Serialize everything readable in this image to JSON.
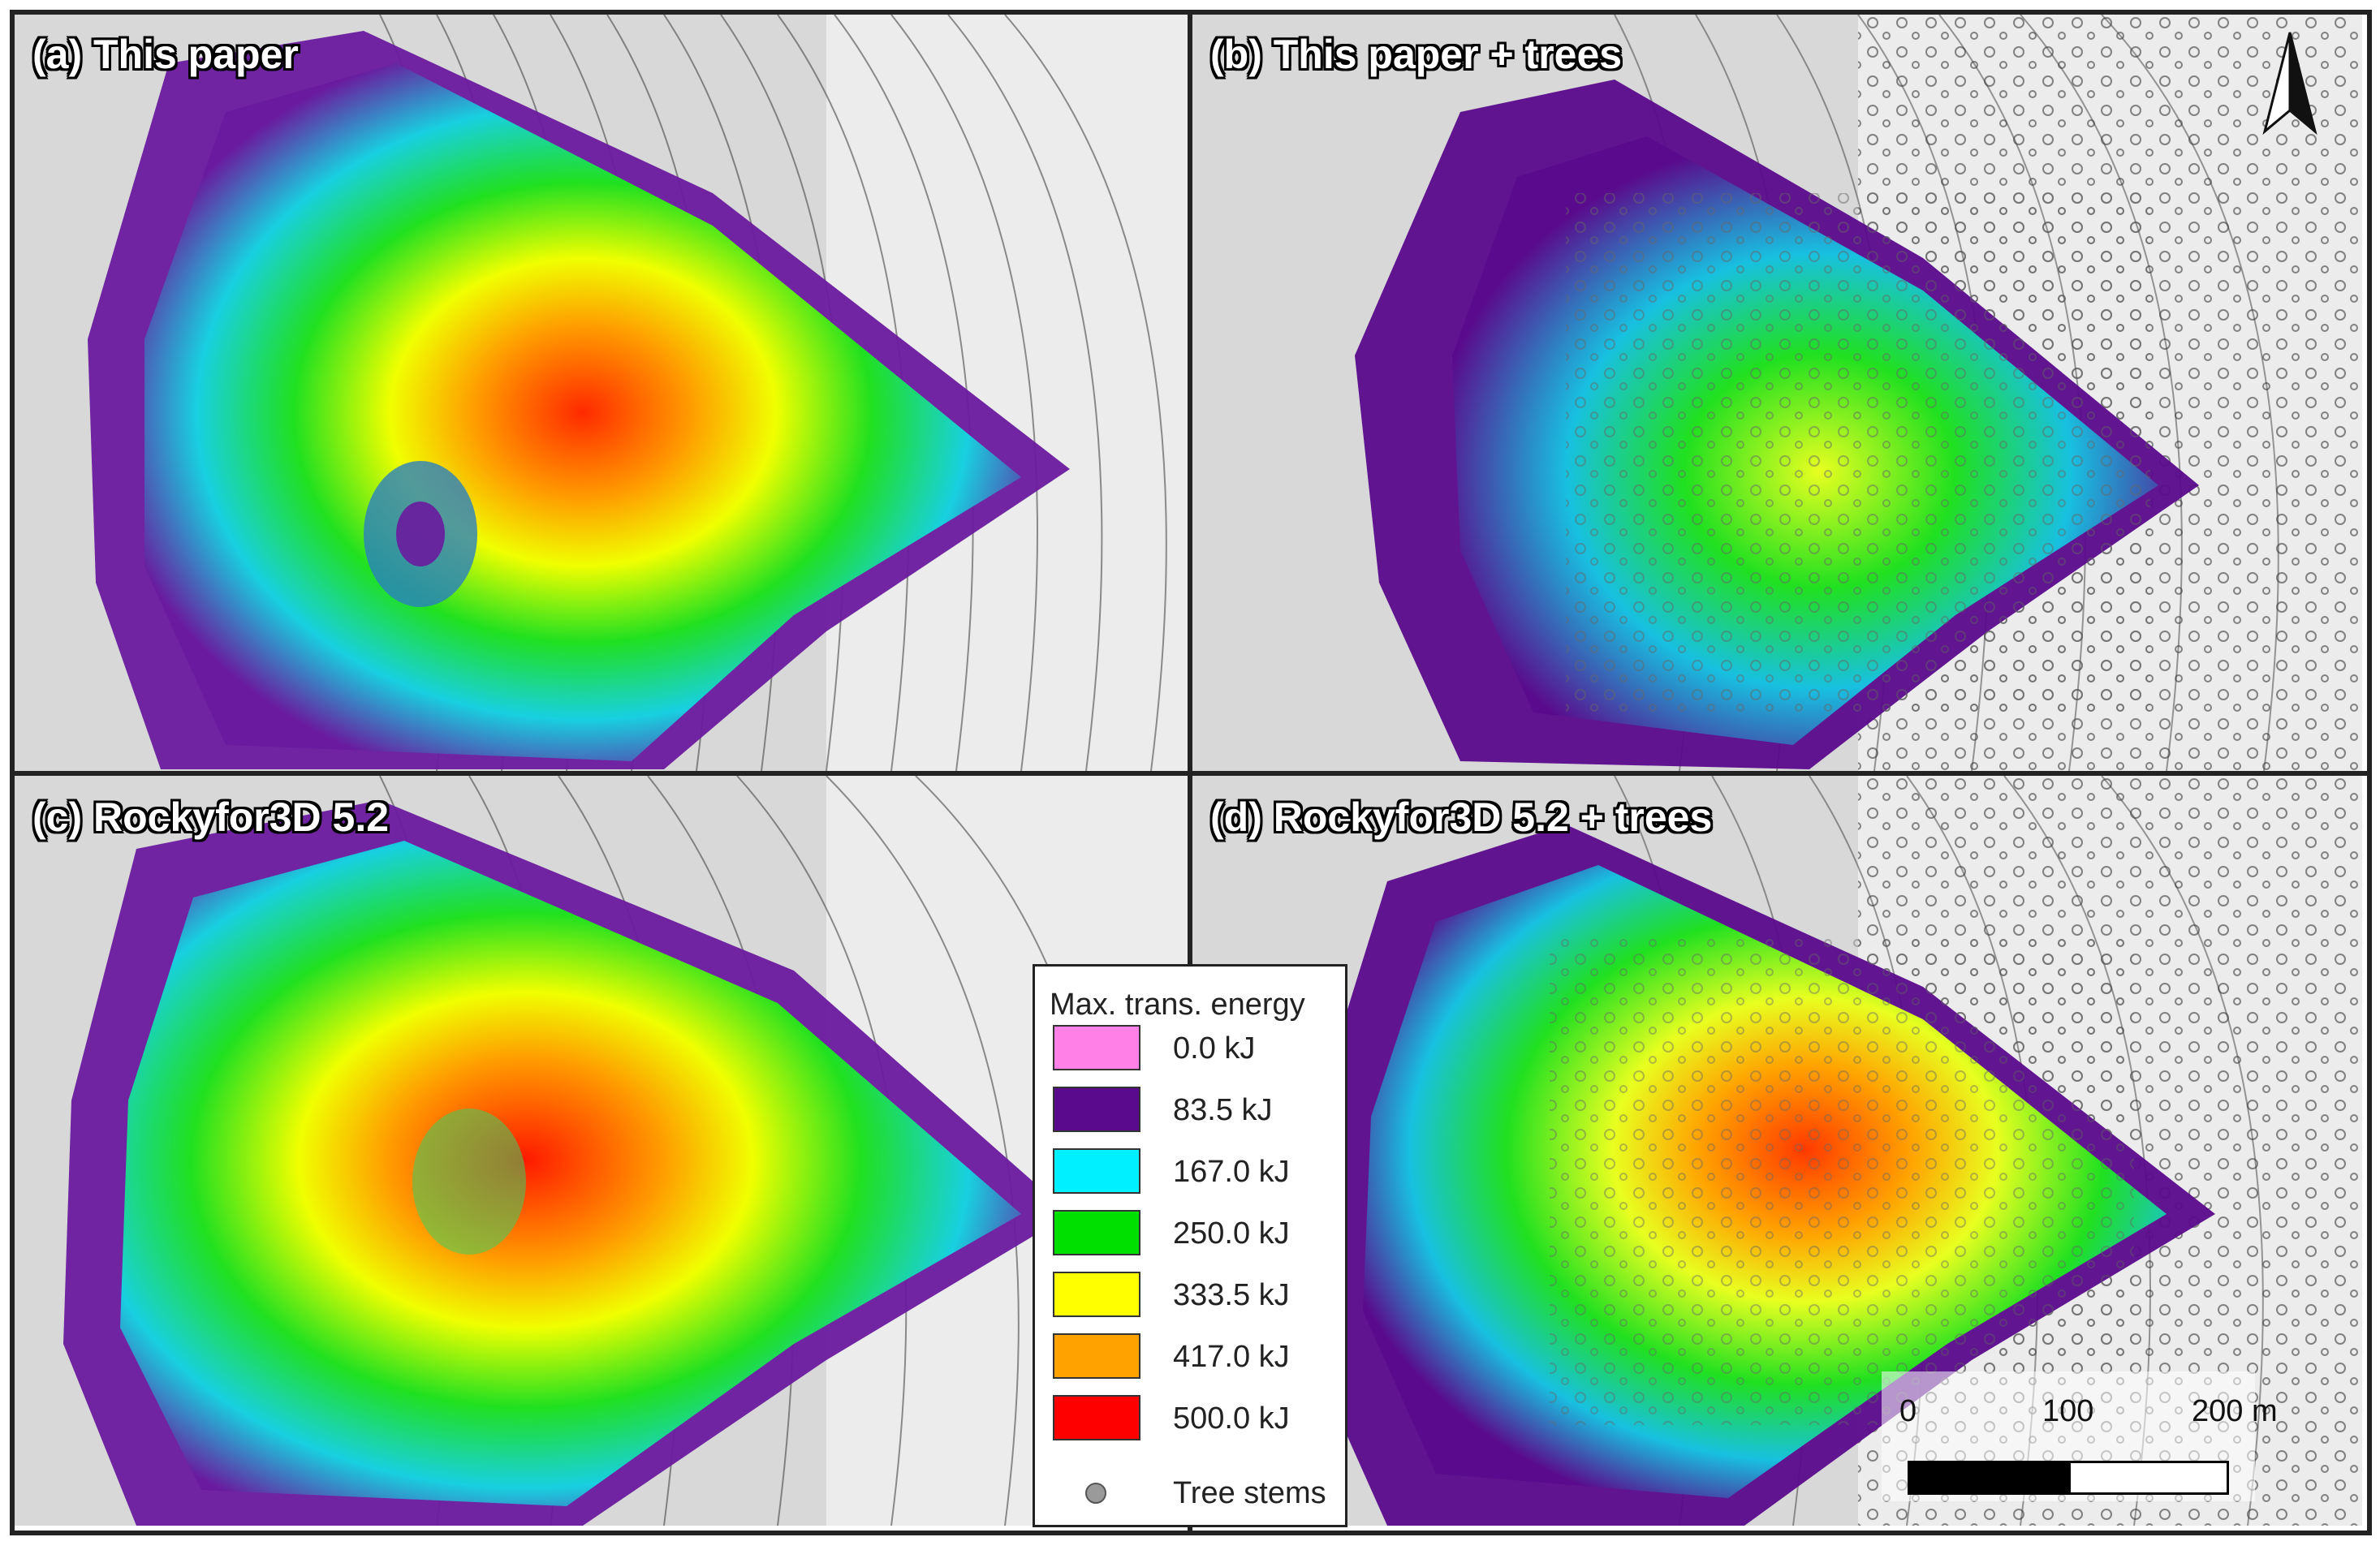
{
  "panels": [
    {
      "label": "(a) This paper"
    },
    {
      "label": "(b) This paper + trees"
    },
    {
      "label": "(c) Rockyfor3D 5.2"
    },
    {
      "label": "(d) Rockyfor3D 5.2 + trees"
    }
  ],
  "legend": {
    "title": "Max. trans. energy",
    "items": [
      {
        "label": "0.0 kJ",
        "color": "#ff80e6"
      },
      {
        "label": "83.5 kJ",
        "color": "#5a0a8c"
      },
      {
        "label": "167.0 kJ",
        "color": "#00f0ff"
      },
      {
        "label": "250.0 kJ",
        "color": "#00e000"
      },
      {
        "label": "333.5 kJ",
        "color": "#ffff00"
      },
      {
        "label": "417.0 kJ",
        "color": "#ffa200"
      },
      {
        "label": "500.0 kJ",
        "color": "#ff0000"
      }
    ],
    "tree_label": "Tree stems",
    "tree_color": "#9a9a9a"
  },
  "scale_bar": {
    "ticks": [
      "0",
      "100",
      "200 m"
    ]
  },
  "north_arrow": {
    "icon": "north-arrow-icon"
  }
}
